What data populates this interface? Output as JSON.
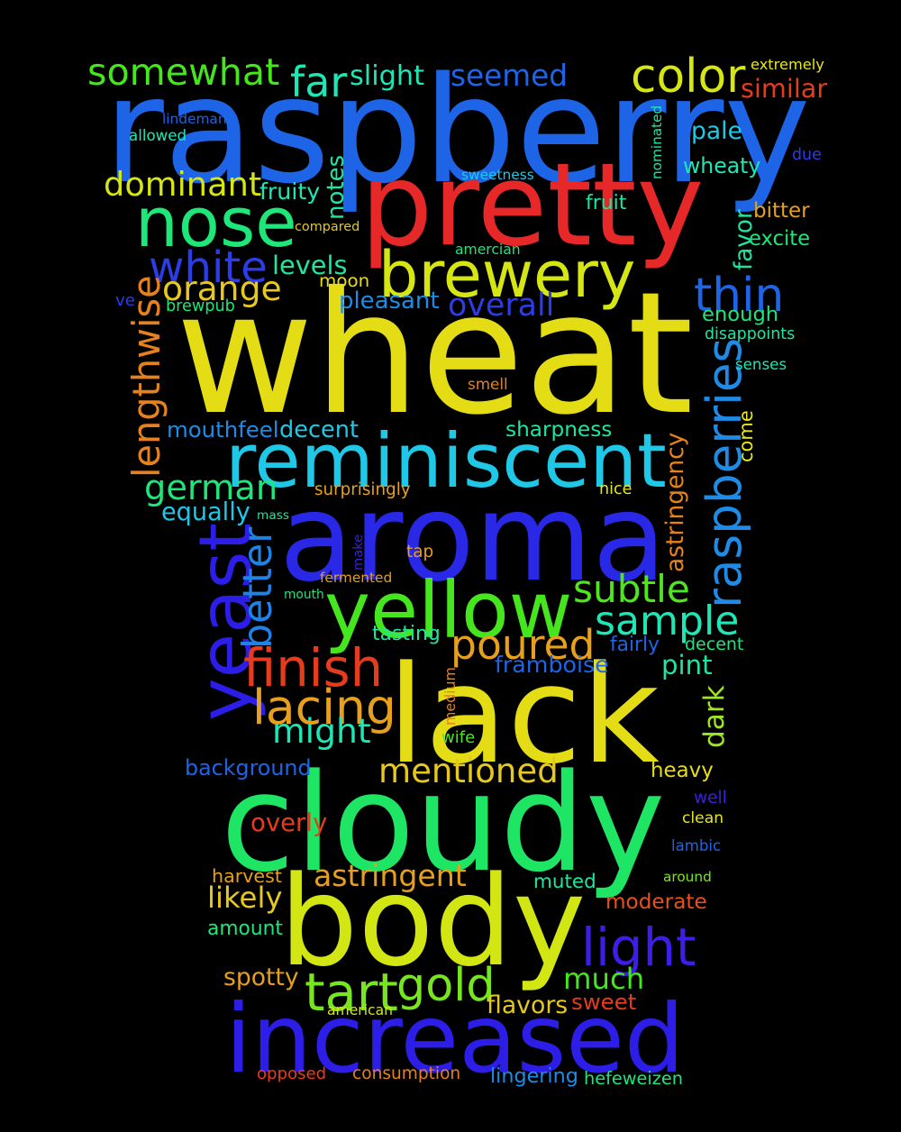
{
  "words": [
    {
      "text": "wheat",
      "color": "#e4dc14",
      "orientation": "horizontal"
    },
    {
      "text": "raspberry",
      "color": "#1e64e6",
      "orientation": "horizontal"
    },
    {
      "text": "aroma",
      "color": "#2828e6",
      "orientation": "horizontal"
    },
    {
      "text": "cloudy",
      "color": "#1ee664",
      "orientation": "horizontal"
    },
    {
      "text": "body",
      "color": "#d2e614",
      "orientation": "horizontal"
    },
    {
      "text": "lack",
      "color": "#e4dc14",
      "orientation": "horizontal"
    },
    {
      "text": "increased",
      "color": "#2c1ee6",
      "orientation": "horizontal"
    },
    {
      "text": "pretty",
      "color": "#e62828",
      "orientation": "horizontal"
    },
    {
      "text": "reminiscent",
      "color": "#1ec8e6",
      "orientation": "horizontal"
    },
    {
      "text": "yellow",
      "color": "#46e61e",
      "orientation": "horizontal"
    },
    {
      "text": "brewery",
      "color": "#d6e614",
      "orientation": "horizontal"
    },
    {
      "text": "nose",
      "color": "#1ee678",
      "orientation": "horizontal"
    },
    {
      "text": "yeast",
      "color": "#2c1ee6",
      "orientation": "vertical"
    },
    {
      "text": "raspberries",
      "color": "#1e8ce6",
      "orientation": "vertical"
    },
    {
      "text": "lacing",
      "color": "#e6a01e",
      "orientation": "horizontal"
    },
    {
      "text": "finish",
      "color": "#e63c1e",
      "orientation": "horizontal"
    },
    {
      "text": "poured",
      "color": "#e6a01e",
      "orientation": "horizontal"
    },
    {
      "text": "sample",
      "color": "#1ee6b4",
      "orientation": "horizontal"
    },
    {
      "text": "gold",
      "color": "#78e61e",
      "orientation": "horizontal"
    },
    {
      "text": "tart",
      "color": "#78e61e",
      "orientation": "horizontal"
    },
    {
      "text": "light",
      "color": "#3c1ee6",
      "orientation": "horizontal"
    },
    {
      "text": "much",
      "color": "#46e61e",
      "orientation": "horizontal"
    },
    {
      "text": "mentioned",
      "color": "#e6c81e",
      "orientation": "horizontal"
    },
    {
      "text": "might",
      "color": "#1ee6b4",
      "orientation": "horizontal"
    },
    {
      "text": "thin",
      "color": "#1e64e6",
      "orientation": "horizontal"
    },
    {
      "text": "german",
      "color": "#1ee678",
      "orientation": "horizontal"
    },
    {
      "text": "white",
      "color": "#2c3ce6",
      "orientation": "horizontal"
    },
    {
      "text": "somewhat",
      "color": "#46e61e",
      "orientation": "horizontal"
    },
    {
      "text": "color",
      "color": "#d6e614",
      "orientation": "horizontal"
    },
    {
      "text": "seemed",
      "color": "#1e64e6",
      "orientation": "horizontal"
    },
    {
      "text": "dominant",
      "color": "#d6e614",
      "orientation": "horizontal"
    },
    {
      "text": "orange",
      "color": "#e6c81e",
      "orientation": "horizontal"
    },
    {
      "text": "lengthwise",
      "color": "#e6821e",
      "orientation": "vertical"
    },
    {
      "text": "better",
      "color": "#1e82e6",
      "orientation": "vertical"
    },
    {
      "text": "subtle",
      "color": "#50e61e",
      "orientation": "horizontal"
    },
    {
      "text": "far",
      "color": "#1ee6b4",
      "orientation": "horizontal"
    },
    {
      "text": "astringent",
      "color": "#e6a01e",
      "orientation": "horizontal"
    },
    {
      "text": "overly",
      "color": "#e63c1e",
      "orientation": "horizontal"
    },
    {
      "text": "overall",
      "color": "#2c3ce6",
      "orientation": "horizontal"
    },
    {
      "text": "framboise",
      "color": "#1e64e6",
      "orientation": "horizontal"
    },
    {
      "text": "background",
      "color": "#1e64e6",
      "orientation": "horizontal"
    },
    {
      "text": "mouthfeel",
      "color": "#1e8ce6",
      "orientation": "horizontal"
    },
    {
      "text": "decent",
      "color": "#1ec8e6",
      "orientation": "horizontal"
    },
    {
      "text": "sharpness",
      "color": "#1ee6a0",
      "orientation": "horizontal"
    },
    {
      "text": "moderate",
      "color": "#e6501e",
      "orientation": "horizontal"
    },
    {
      "text": "muted",
      "color": "#1ee6a0",
      "orientation": "horizontal"
    },
    {
      "text": "flavors",
      "color": "#e6c81e",
      "orientation": "horizontal"
    },
    {
      "text": "sweet",
      "color": "#e63c1e",
      "orientation": "horizontal"
    },
    {
      "text": "heavy",
      "color": "#e6dc1e",
      "orientation": "horizontal"
    },
    {
      "text": "likely",
      "color": "#e6c81e",
      "orientation": "horizontal"
    },
    {
      "text": "amount",
      "color": "#1ee678",
      "orientation": "horizontal"
    },
    {
      "text": "spotty",
      "color": "#e6a01e",
      "orientation": "horizontal"
    },
    {
      "text": "equally",
      "color": "#1ec8e6",
      "orientation": "horizontal"
    },
    {
      "text": "pleasant",
      "color": "#1e8ce6",
      "orientation": "horizontal"
    },
    {
      "text": "levels",
      "color": "#1ee6a0",
      "orientation": "horizontal"
    },
    {
      "text": "moon",
      "color": "#e6dc1e",
      "orientation": "horizontal"
    },
    {
      "text": "enough",
      "color": "#1ee678",
      "orientation": "horizontal"
    },
    {
      "text": "wheaty",
      "color": "#1ee6b4",
      "orientation": "horizontal"
    },
    {
      "text": "pale",
      "color": "#1ec8e6",
      "orientation": "horizontal"
    },
    {
      "text": "slight",
      "color": "#1ee6b4",
      "orientation": "horizontal"
    },
    {
      "text": "similar",
      "color": "#e63c1e",
      "orientation": "horizontal"
    },
    {
      "text": "pint",
      "color": "#1ee6a0",
      "orientation": "horizontal"
    },
    {
      "text": "astringency",
      "color": "#e6821e",
      "orientation": "vertical"
    },
    {
      "text": "dark",
      "color": "#a0e61e",
      "orientation": "vertical"
    },
    {
      "text": "come",
      "color": "#e6e61e",
      "orientation": "vertical"
    },
    {
      "text": "notes",
      "color": "#1ee6a0",
      "orientation": "vertical"
    },
    {
      "text": "favor",
      "color": "#1ee6a0",
      "orientation": "vertical"
    },
    {
      "text": "fruity",
      "color": "#1ee6b4",
      "orientation": "horizontal"
    },
    {
      "text": "extremely",
      "color": "#e6e61e",
      "orientation": "horizontal"
    },
    {
      "text": "lindeman",
      "color": "#1e64e6",
      "orientation": "horizontal"
    },
    {
      "text": "allowed",
      "color": "#1ee6b4",
      "orientation": "horizontal"
    },
    {
      "text": "nominated",
      "color": "#1ee6a0",
      "orientation": "vertical"
    },
    {
      "text": "due",
      "color": "#2c3ce6",
      "orientation": "horizontal"
    },
    {
      "text": "sweetness",
      "color": "#1ec8e6",
      "orientation": "horizontal"
    },
    {
      "text": "fruit",
      "color": "#1ee6a0",
      "orientation": "horizontal"
    },
    {
      "text": "bitter",
      "color": "#e6a01e",
      "orientation": "horizontal"
    },
    {
      "text": "compared",
      "color": "#e6c81e",
      "orientation": "horizontal"
    },
    {
      "text": "amercian",
      "color": "#1ee678",
      "orientation": "horizontal"
    },
    {
      "text": "excite",
      "color": "#1ee678",
      "orientation": "horizontal"
    },
    {
      "text": "ve",
      "color": "#2c3ce6",
      "orientation": "horizontal"
    },
    {
      "text": "brewpub",
      "color": "#1ee678",
      "orientation": "horizontal"
    },
    {
      "text": "disappoints",
      "color": "#1ee6a0",
      "orientation": "horizontal"
    },
    {
      "text": "senses",
      "color": "#1ee6b4",
      "orientation": "horizontal"
    },
    {
      "text": "smell",
      "color": "#e6821e",
      "orientation": "horizontal"
    },
    {
      "text": "surprisingly",
      "color": "#e6a01e",
      "orientation": "horizontal"
    },
    {
      "text": "nice",
      "color": "#e6e61e",
      "orientation": "horizontal"
    },
    {
      "text": "mass",
      "color": "#1ee6a0",
      "orientation": "horizontal"
    },
    {
      "text": "make",
      "color": "#3c1ee6",
      "orientation": "vertical"
    },
    {
      "text": "tap",
      "color": "#e6a01e",
      "orientation": "horizontal"
    },
    {
      "text": "fermented",
      "color": "#e6a01e",
      "orientation": "horizontal"
    },
    {
      "text": "mouth",
      "color": "#1ee678",
      "orientation": "horizontal"
    },
    {
      "text": "tasting",
      "color": "#1ee6a0",
      "orientation": "horizontal"
    },
    {
      "text": "fairly",
      "color": "#1e64e6",
      "orientation": "horizontal"
    },
    {
      "text": "decent",
      "color": "#1ee678",
      "orientation": "horizontal"
    },
    {
      "text": "medium",
      "color": "#e6821e",
      "orientation": "vertical"
    },
    {
      "text": "wife",
      "color": "#50e61e",
      "orientation": "horizontal"
    },
    {
      "text": "well",
      "color": "#3c1ee6",
      "orientation": "horizontal"
    },
    {
      "text": "clean",
      "color": "#e6e61e",
      "orientation": "horizontal"
    },
    {
      "text": "lambic",
      "color": "#1e64e6",
      "orientation": "horizontal"
    },
    {
      "text": "harvest",
      "color": "#e6a01e",
      "orientation": "horizontal"
    },
    {
      "text": "around",
      "color": "#78e61e",
      "orientation": "horizontal"
    },
    {
      "text": "american",
      "color": "#d6e614",
      "orientation": "horizontal"
    },
    {
      "text": "opposed",
      "color": "#e63c1e",
      "orientation": "horizontal"
    },
    {
      "text": "consumption",
      "color": "#e6821e",
      "orientation": "horizontal"
    },
    {
      "text": "lingering",
      "color": "#1e8ce6",
      "orientation": "horizontal"
    },
    {
      "text": "hefeweizen",
      "color": "#1ee678",
      "orientation": "horizontal"
    }
  ]
}
